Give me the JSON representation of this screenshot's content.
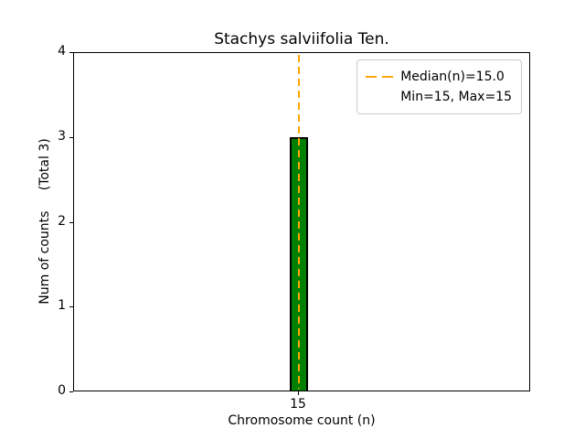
{
  "figure": {
    "background": "#ffffff"
  },
  "chart_data": {
    "type": "bar",
    "title": "Stachys salviifolia Ten.",
    "xlabel": "Chromosome count (n)",
    "ylabel": "Num of counts     (Total 3)",
    "categories": [
      "15"
    ],
    "values": [
      3
    ],
    "ylim": [
      0,
      4
    ],
    "yticks": [
      "0",
      "1",
      "2",
      "3",
      "4"
    ],
    "xticks": [
      "15"
    ],
    "grid": false,
    "bar_color": "#008000",
    "bar_edge_color": "#000000",
    "median_line": {
      "x": "15",
      "value": 15.0,
      "color": "#ffa500",
      "style": "dashed"
    },
    "legend": {
      "position": "upper right",
      "line_color": "#ffa500",
      "entries": [
        "Median(n)=15.0",
        "Min=15, Max=15"
      ]
    }
  }
}
